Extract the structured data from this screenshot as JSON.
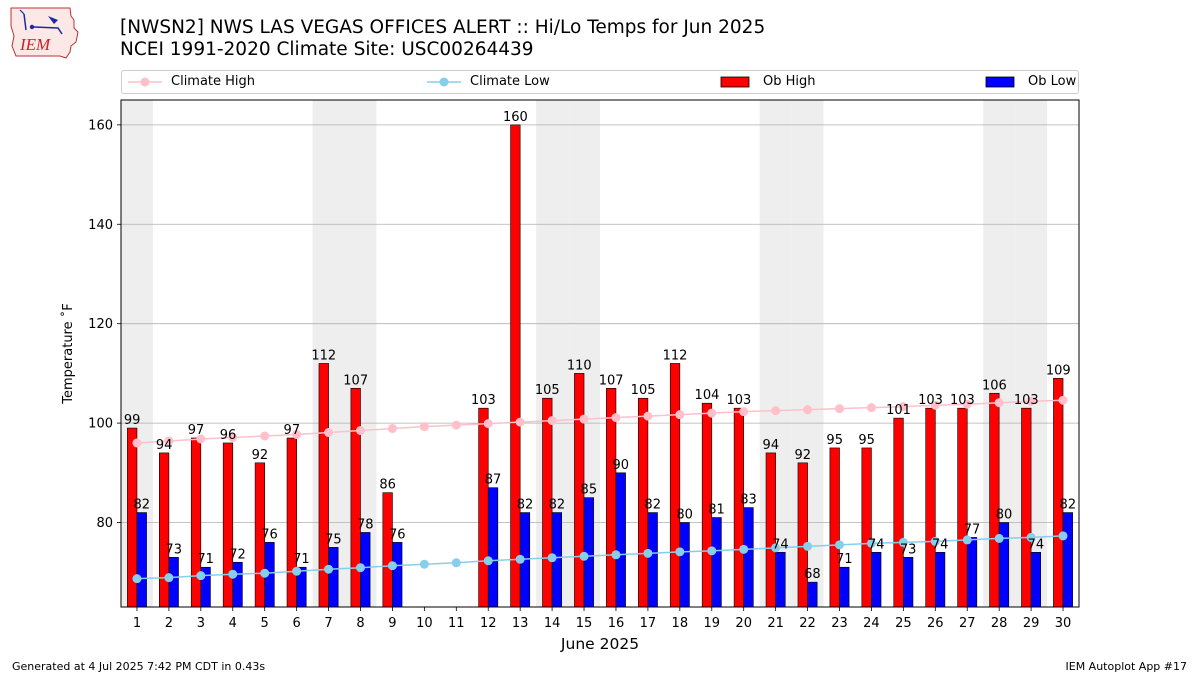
{
  "header": {
    "title_line1": "[NWSN2] NWS LAS VEGAS  OFFICES ALERT :: Hi/Lo Temps for Jun 2025",
    "title_line2": "NCEI 1991-2020 Climate Site: USC00264439",
    "logo_text": "IEM"
  },
  "footer": {
    "generated": "Generated at 4 Jul 2025 7:42 PM CDT in 0.43s",
    "app": "IEM Autoplot App #17"
  },
  "colors": {
    "ob_high": "#ff0000",
    "ob_low": "#0000ff",
    "climate_high": "#ffc0cb",
    "climate_low": "#87ceeb",
    "weekend_shade": "#eeeeee",
    "grid": "#b0b0b0"
  },
  "chart_data": {
    "type": "bar",
    "title": "[NWSN2] NWS LAS VEGAS  OFFICES ALERT :: Hi/Lo Temps for Jun 2025",
    "subtitle": "NCEI 1991-2020 Climate Site: USC00264439",
    "xlabel": "June 2025",
    "ylabel": "Temperature ˚F",
    "ylim": [
      63,
      165
    ],
    "yticks": [
      80,
      100,
      120,
      140,
      160
    ],
    "grid": "horizontal",
    "legend_placement": "top",
    "categories": [
      "1",
      "2",
      "3",
      "4",
      "5",
      "6",
      "7",
      "8",
      "9",
      "10",
      "11",
      "12",
      "13",
      "14",
      "15",
      "16",
      "17",
      "18",
      "19",
      "20",
      "21",
      "22",
      "23",
      "24",
      "25",
      "26",
      "27",
      "28",
      "29",
      "30"
    ],
    "weekend_days": [
      1,
      7,
      8,
      14,
      15,
      21,
      22,
      28,
      29
    ],
    "series": [
      {
        "name": "Ob High",
        "kind": "bar",
        "values": [
          99,
          94,
          97,
          96,
          92,
          97,
          112,
          107,
          86,
          null,
          null,
          103,
          160,
          105,
          110,
          107,
          105,
          112,
          104,
          103,
          94,
          92,
          95,
          95,
          101,
          103,
          103,
          106,
          103,
          109
        ]
      },
      {
        "name": "Ob Low",
        "kind": "bar",
        "values": [
          82,
          73,
          71,
          72,
          76,
          71,
          75,
          78,
          76,
          null,
          null,
          87,
          82,
          82,
          85,
          90,
          82,
          80,
          81,
          83,
          74,
          68,
          71,
          74,
          73,
          74,
          77,
          80,
          74,
          82
        ]
      },
      {
        "name": "Climate High",
        "kind": "line",
        "values": [
          96.0,
          96.4,
          96.8,
          97.1,
          97.4,
          97.7,
          98.1,
          98.5,
          98.9,
          99.3,
          99.6,
          99.9,
          100.2,
          100.5,
          100.8,
          101.1,
          101.4,
          101.7,
          102.0,
          102.3,
          102.5,
          102.7,
          102.9,
          103.1,
          103.3,
          103.6,
          103.8,
          104.1,
          104.4,
          104.6
        ]
      },
      {
        "name": "Climate Low",
        "kind": "line",
        "values": [
          68.7,
          68.9,
          69.3,
          69.6,
          69.8,
          70.2,
          70.6,
          70.9,
          71.3,
          71.6,
          71.9,
          72.3,
          72.6,
          72.9,
          73.2,
          73.5,
          73.8,
          74.1,
          74.3,
          74.6,
          74.9,
          75.2,
          75.5,
          75.8,
          76.0,
          76.2,
          76.5,
          76.8,
          77.0,
          77.3
        ]
      }
    ]
  }
}
